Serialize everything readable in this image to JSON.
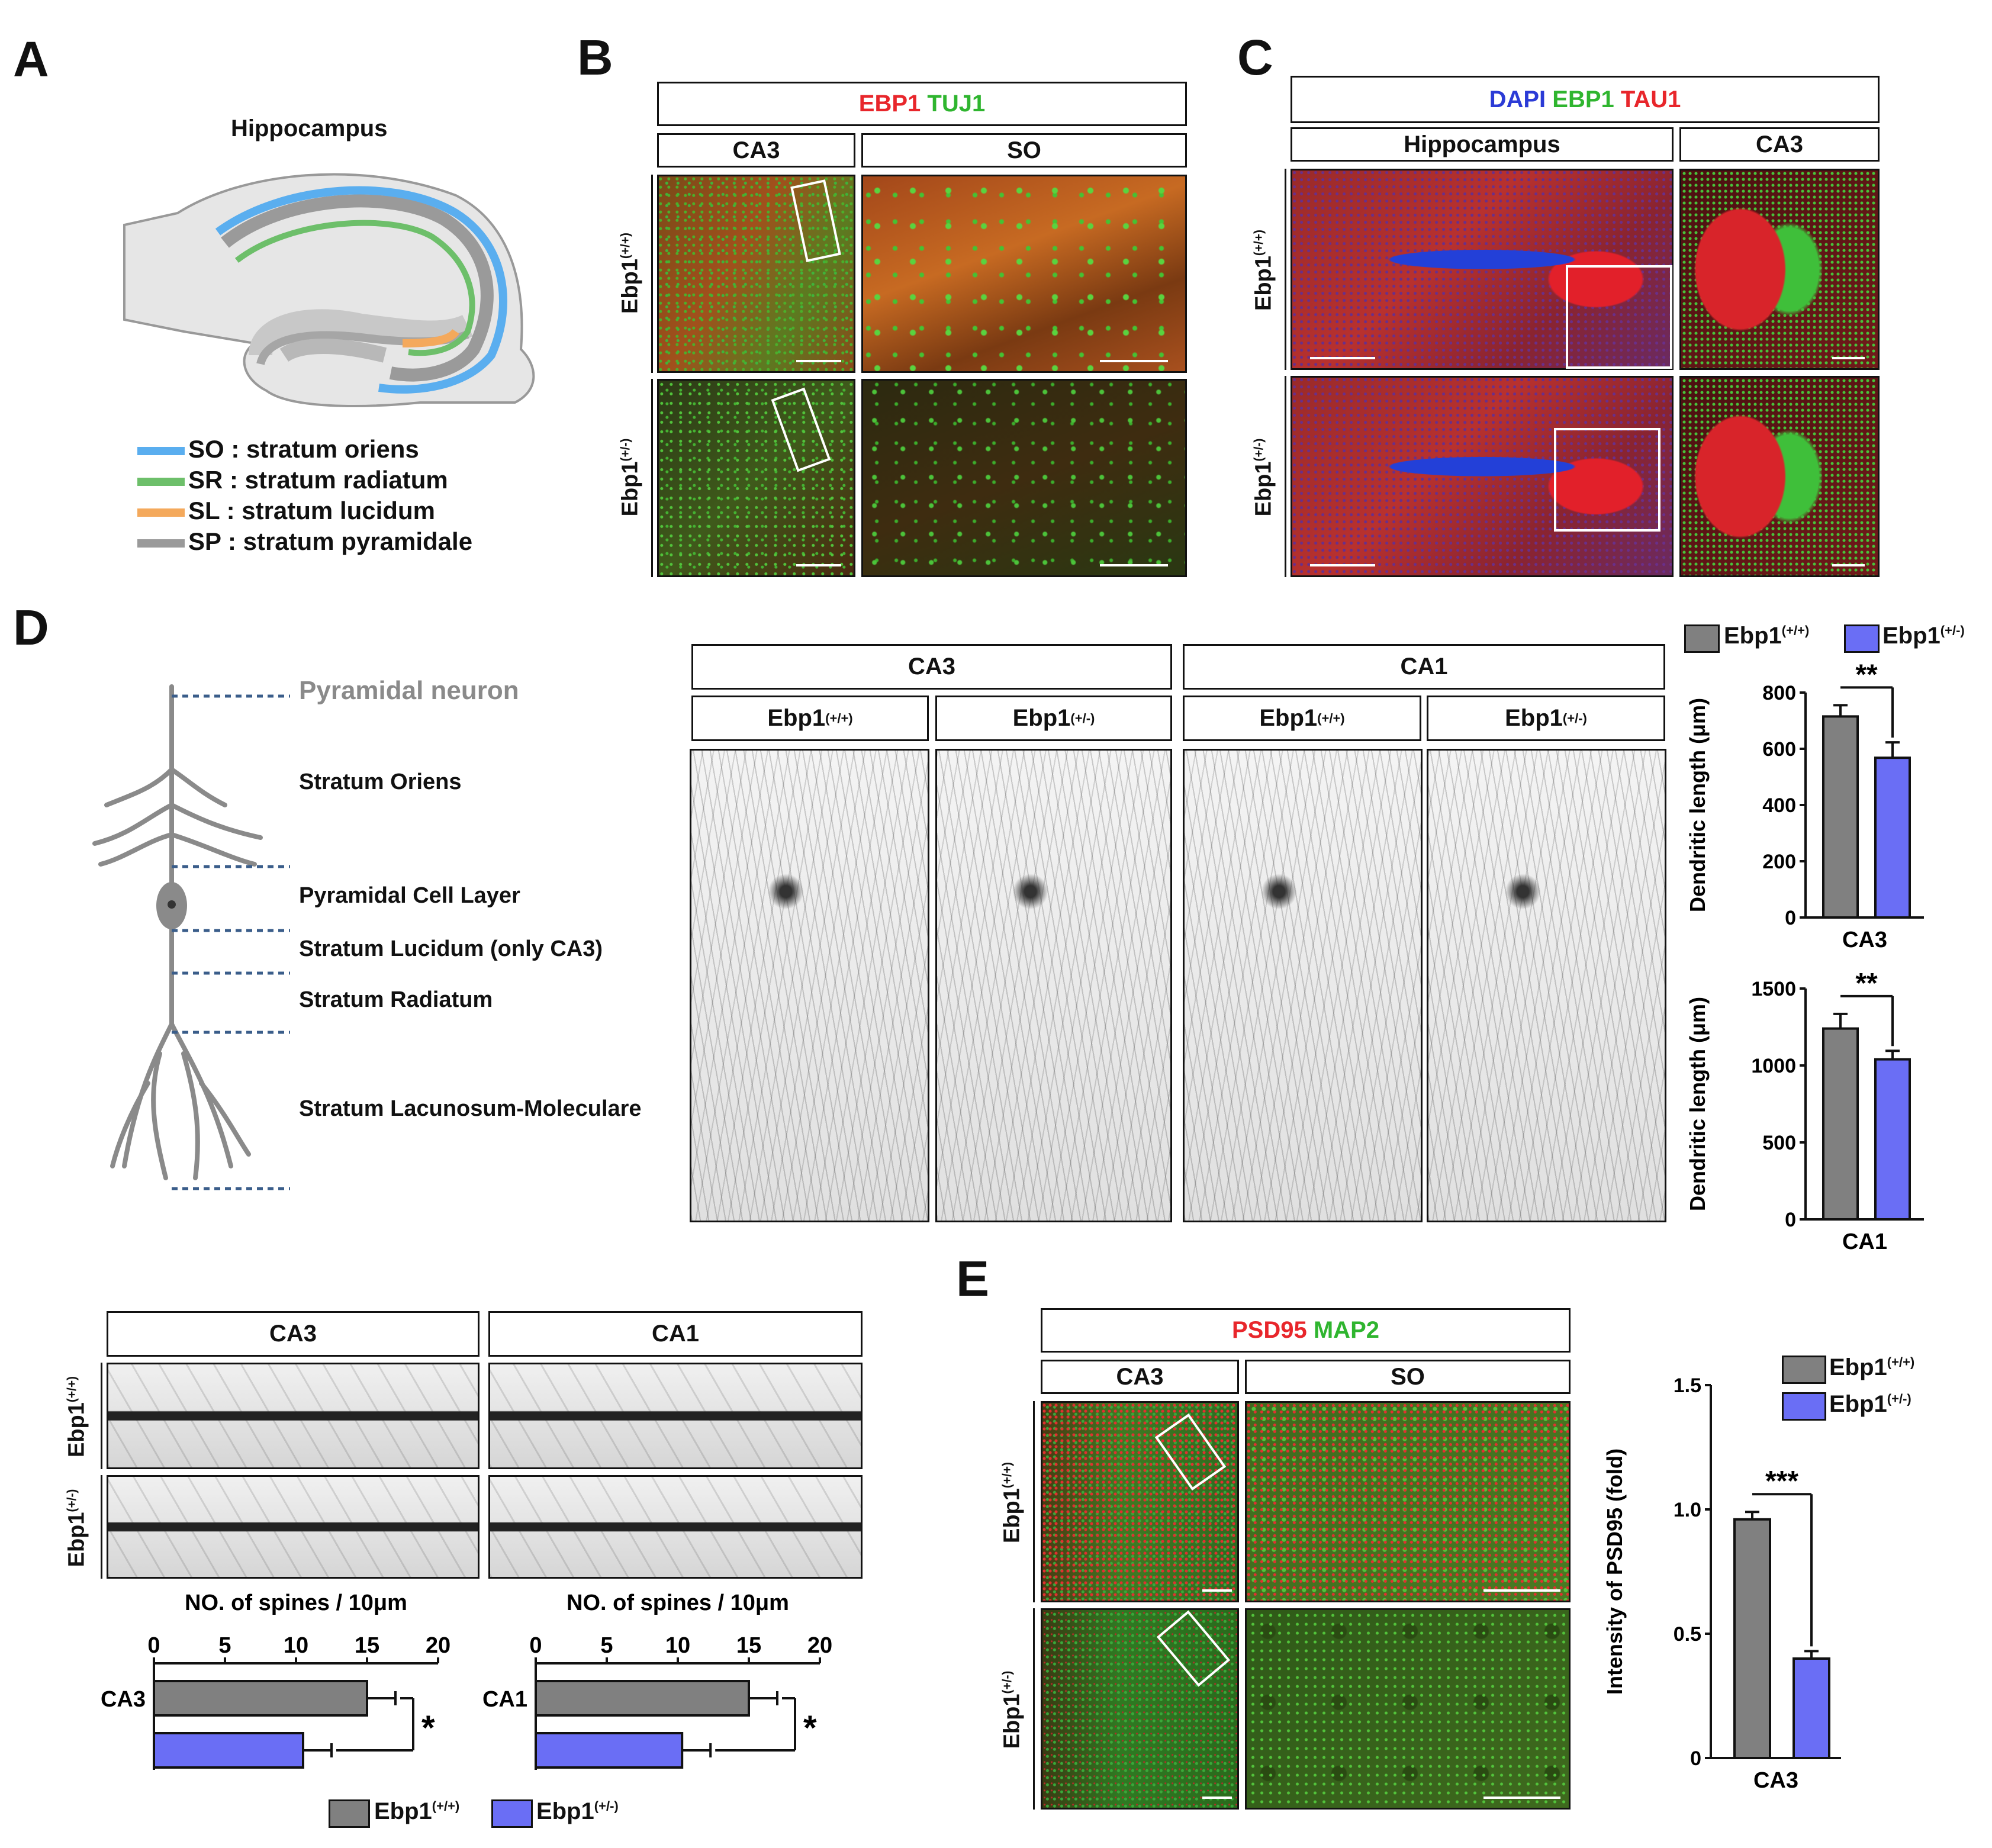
{
  "panels": {
    "A": "A",
    "B": "B",
    "C": "C",
    "D": "D",
    "E": "E"
  },
  "panelA": {
    "title": "Hippocampus",
    "legend": [
      {
        "color": "#5aaeef",
        "text": "SO : stratum oriens"
      },
      {
        "color": "#6dbf6a",
        "text": "SR : stratum radiatum"
      },
      {
        "color": "#f4a95c",
        "text": "SL : stratum lucidum"
      },
      {
        "color": "#9a9a9a",
        "text": "SP : stratum pyramidale"
      }
    ]
  },
  "panelB": {
    "header_red": "EBP1",
    "header_green": "TUJ1",
    "col1": "CA3",
    "col2": "SO",
    "row1_base": "Ebp1",
    "row1_sup": "(+/+)",
    "row2_base": "Ebp1",
    "row2_sup": "(+/-)"
  },
  "panelC": {
    "header_blue": "DAPI",
    "header_green": "EBP1",
    "header_red": "TAU1",
    "col1": "Hippocampus",
    "col2": "CA3",
    "row1_base": "Ebp1",
    "row1_sup": "(+/+)",
    "row2_base": "Ebp1",
    "row2_sup": "(+/-)"
  },
  "panelD": {
    "layers": [
      "Pyramidal neuron",
      "Stratum Oriens",
      "Pyramidal Cell Layer",
      "Stratum Lucidum (only CA3)",
      "Stratum Radiatum",
      "Stratum Lacunosum-Moleculare"
    ],
    "group1": "CA3",
    "group2": "CA1",
    "sub_base": "Ebp1",
    "sub_wt_sup": "(+/+)",
    "sub_het_sup": "(+/-)"
  },
  "legend": {
    "wt_base": "Ebp1",
    "wt_sup": "(+/+)",
    "wt_color": "#808080",
    "het_base": "Ebp1",
    "het_sup": "(+/-)",
    "het_color": "#6a6ef5"
  },
  "spines": {
    "col1": "CA3",
    "col2": "CA1",
    "row1_base": "Ebp1",
    "row1_sup": "(+/+)",
    "row2_base": "Ebp1",
    "row2_sup": "(+/-)"
  },
  "panelE": {
    "header_red": "PSD95",
    "header_green": "MAP2",
    "col1": "CA3",
    "col2": "SO",
    "row1_base": "Ebp1",
    "row1_sup": "(+/+)",
    "row2_base": "Ebp1",
    "row2_sup": "(+/-)"
  },
  "chart_data": [
    {
      "type": "bar",
      "ylabel": "Dendritic length (μm)",
      "categories": [
        "CA3"
      ],
      "ylim": [
        0,
        800
      ],
      "yticks": [
        "0",
        "200",
        "400",
        "600",
        "800"
      ],
      "series": [
        {
          "name": "Ebp1(+/+)",
          "values": [
            715
          ],
          "error": [
            40
          ],
          "color": "#808080"
        },
        {
          "name": "Ebp1(+/-)",
          "values": [
            568
          ],
          "error": [
            55
          ],
          "color": "#6a6ef5"
        }
      ],
      "significance": "**"
    },
    {
      "type": "bar",
      "ylabel": "Dendritic length (μm)",
      "categories": [
        "CA1"
      ],
      "ylim": [
        0,
        1500
      ],
      "yticks": [
        "0",
        "500",
        "1000",
        "1500"
      ],
      "series": [
        {
          "name": "Ebp1(+/+)",
          "values": [
            1240
          ],
          "error": [
            95
          ],
          "color": "#808080"
        },
        {
          "name": "Ebp1(+/-)",
          "values": [
            1040
          ],
          "error": [
            55
          ],
          "color": "#6a6ef5"
        }
      ],
      "significance": "**"
    },
    {
      "type": "bar",
      "orientation": "horizontal",
      "title": "NO. of spines / 10μm",
      "categories": [
        "CA3"
      ],
      "xlim": [
        0,
        20
      ],
      "xticks": [
        "0",
        "5",
        "10",
        "15",
        "20"
      ],
      "series": [
        {
          "name": "Ebp1(+/+)",
          "values": [
            15
          ],
          "error": [
            2
          ],
          "color": "#808080"
        },
        {
          "name": "Ebp1(+/-)",
          "values": [
            10.5
          ],
          "error": [
            2
          ],
          "color": "#6a6ef5"
        }
      ],
      "significance": "*"
    },
    {
      "type": "bar",
      "orientation": "horizontal",
      "title": "NO. of spines / 10μm",
      "categories": [
        "CA1"
      ],
      "xlim": [
        0,
        20
      ],
      "xticks": [
        "0",
        "5",
        "10",
        "15",
        "20"
      ],
      "series": [
        {
          "name": "Ebp1(+/+)",
          "values": [
            15
          ],
          "error": [
            2
          ],
          "color": "#808080"
        },
        {
          "name": "Ebp1(+/-)",
          "values": [
            10.3
          ],
          "error": [
            2
          ],
          "color": "#6a6ef5"
        }
      ],
      "significance": "*"
    },
    {
      "type": "bar",
      "ylabel": "Intensity of PSD95 (fold)",
      "categories": [
        "CA3"
      ],
      "ylim": [
        0,
        1.5
      ],
      "yticks": [
        "0",
        "0.5",
        "1.0",
        "1.5"
      ],
      "series": [
        {
          "name": "Ebp1(+/+)",
          "values": [
            0.96
          ],
          "error": [
            0.03
          ],
          "color": "#808080"
        },
        {
          "name": "Ebp1(+/-)",
          "values": [
            0.4
          ],
          "error": [
            0.03
          ],
          "color": "#6a6ef5"
        }
      ],
      "significance": "***"
    }
  ]
}
